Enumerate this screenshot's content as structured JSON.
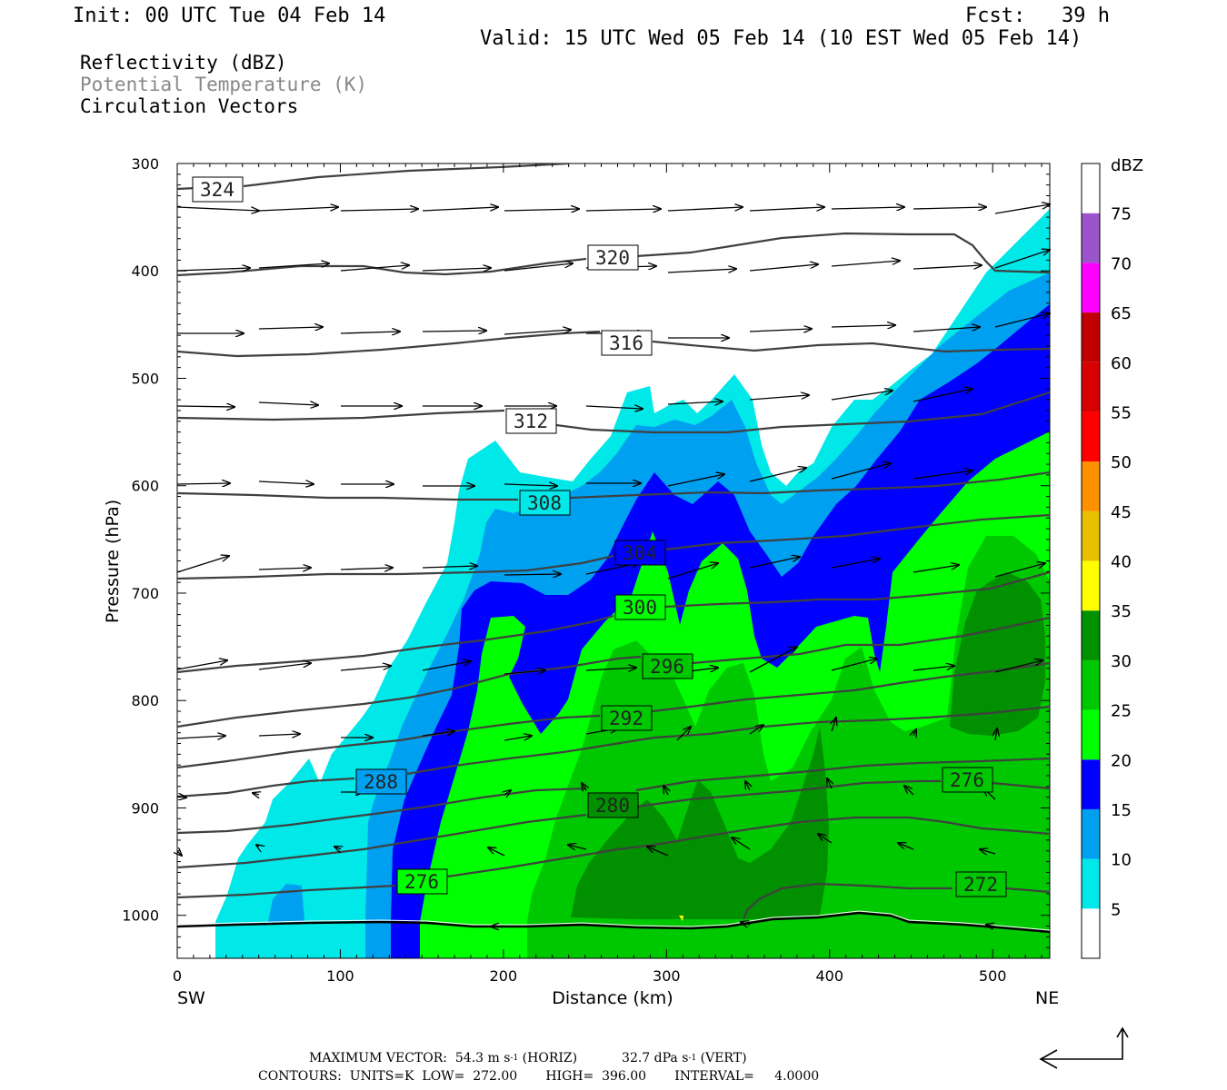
{
  "header": {
    "init": "Init: 00 UTC Tue 04 Feb 14",
    "fcst": "Fcst:   39 h",
    "valid": "Valid: 15 UTC Wed 05 Feb 14 (10 EST Wed 05 Feb 14)"
  },
  "legend": {
    "line1": "Reflectivity (dBZ)",
    "line2": "Potential Temperature (K)",
    "line3": "Circulation Vectors"
  },
  "footer": {
    "max_vector_label": "MAXIMUM VECTOR:",
    "horiz_value": "54.3 m s",
    "horiz_unit": "(HORIZ)",
    "vert_value": "32.7 dPa s",
    "vert_unit": "(VERT)",
    "exp": "-1",
    "contours": "CONTOURS:  UNITS=K  LOW=  272.00       HIGH=  396.00       INTERVAL=     4.0000"
  },
  "chart_data": {
    "type": "contour-cross-section",
    "xlabel": "Distance (km)",
    "ylabel": "Pressure (hPa)",
    "x_left_label": "SW",
    "x_right_label": "NE",
    "xlim": [
      0,
      535
    ],
    "ylim": [
      1040,
      300
    ],
    "x_ticks": [
      0,
      100,
      200,
      300,
      400,
      500
    ],
    "y_ticks": [
      300,
      400,
      500,
      600,
      700,
      800,
      900,
      1000
    ],
    "colorbar": {
      "title": "dBZ",
      "levels": [
        5,
        10,
        15,
        20,
        25,
        30,
        35,
        40,
        45,
        50,
        55,
        60,
        65,
        70,
        75
      ],
      "colors": [
        "#ffffff",
        "#00e8e8",
        "#00a0f0",
        "#0000ff",
        "#00ff00",
        "#00c800",
        "#009000",
        "#ffff00",
        "#e8c000",
        "#ff9000",
        "#ff0000",
        "#d80000",
        "#c00000",
        "#ff00ff",
        "#9955c9",
        "#ffffff"
      ]
    },
    "theta_contour_labels": [
      {
        "value": "324",
        "x": 13,
        "p": 325
      },
      {
        "value": "320",
        "x": 268,
        "p": 388
      },
      {
        "value": "316",
        "x": 275,
        "p": 468
      },
      {
        "value": "312",
        "x": 217,
        "p": 541
      },
      {
        "value": "308",
        "x": 225,
        "p": 617
      },
      {
        "value": "304",
        "x": 284,
        "p": 686
      },
      {
        "value": "300",
        "x": 284,
        "p": 713
      },
      {
        "value": "296",
        "x": 301,
        "p": 768
      },
      {
        "value": "292",
        "x": 276,
        "p": 817
      },
      {
        "value": "288",
        "x": 125,
        "p": 876
      },
      {
        "value": "280",
        "x": 268,
        "p": 898
      },
      {
        "value": "276",
        "x": 150,
        "p": 970
      },
      {
        "value": "276",
        "x": 482,
        "p": 875
      },
      {
        "value": "272",
        "x": 490,
        "p": 972
      }
    ]
  }
}
